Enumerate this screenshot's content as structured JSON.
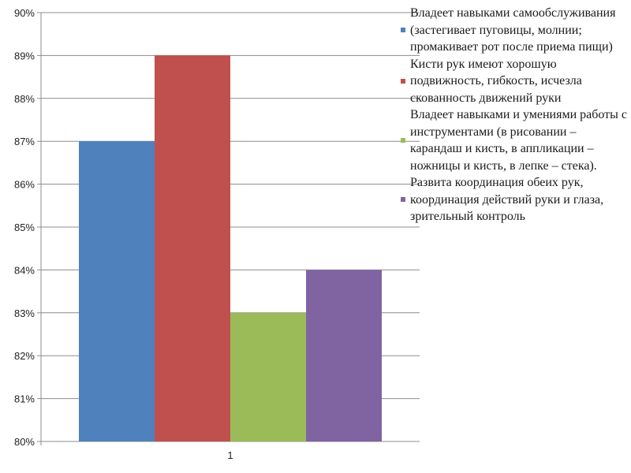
{
  "chart_data": {
    "type": "bar",
    "categories": [
      "1"
    ],
    "series": [
      {
        "name": "Владеет навыками самообслуживания (застегивает пуговицы, молнии; промакивает рот после приема пищи)",
        "values": [
          87
        ],
        "color": "#4f81bd"
      },
      {
        "name": "Кисти рук имеют хорошую подвижность, гибкость, исчезла скованность движений руки",
        "values": [
          89
        ],
        "color": "#c0504d"
      },
      {
        "name": "Владеет навыками и умениями работы с инструментами (в рисовании – карандаш и кисть, в аппликации – ножницы и кисть, в лепке – стека).",
        "values": [
          83
        ],
        "color": "#9bbb59"
      },
      {
        "name": "Развита координация обеих рук, координация действий руки и глаза, зрительный контроль",
        "values": [
          84
        ],
        "color": "#8064a2"
      }
    ],
    "title": "",
    "xlabel": "",
    "ylabel": "",
    "ylim": [
      80,
      90
    ],
    "ytick_step": 1,
    "ytick_format": "percent",
    "grid": true,
    "legend_position": "right"
  }
}
